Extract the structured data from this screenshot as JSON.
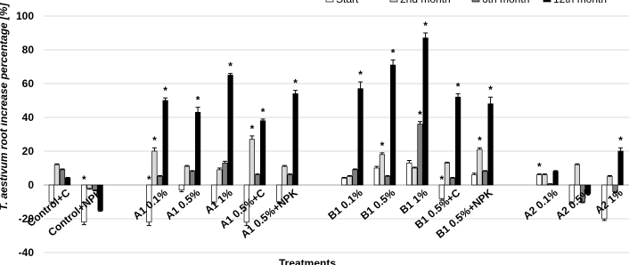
{
  "chart_data": {
    "type": "bar",
    "y_label": "T. aestivum root increase percentage [%]",
    "x_label": "Treatments",
    "categories": [
      "Control+C",
      "Control+NPK",
      null,
      "A1 0.1%",
      "A1 0.5%",
      "A1 1%",
      "A1 0.5%+C",
      "A1 0.5%+NPK",
      null,
      "B1 0.1%",
      "B1 0.5%",
      "B1 1%",
      "B1 0.5%+C",
      "B1 0.5%+NPK",
      null,
      "A2 0.1%",
      "A2 0.5%",
      "A2 1%"
    ],
    "ylim": [
      -40,
      100
    ],
    "yticks": [
      -40,
      -20,
      0,
      20,
      40,
      60,
      80,
      100
    ],
    "grid": true,
    "legend": "top-right",
    "series": [
      {
        "name": "Start",
        "color": "#ffffff",
        "values": [
          -10,
          -22,
          null,
          -22,
          -3,
          -10,
          -22,
          -10,
          null,
          4,
          10,
          13,
          -8,
          6,
          null,
          6,
          -10,
          -20
        ],
        "errors": [
          1,
          1.5,
          null,
          2,
          1,
          1,
          2,
          1,
          null,
          0.5,
          1,
          1.5,
          1,
          1,
          null,
          0.5,
          1,
          1
        ],
        "significance": [
          null,
          "*",
          null,
          "*",
          null,
          null,
          null,
          null,
          null,
          null,
          null,
          null,
          "*",
          null,
          null,
          "*",
          null,
          null
        ]
      },
      {
        "name": "2nd month",
        "color": "#d9d9d9",
        "values": [
          12,
          -2,
          null,
          20,
          11,
          9,
          27,
          11,
          null,
          5,
          18,
          10,
          13,
          21,
          null,
          6,
          12,
          5
        ],
        "errors": [
          0.5,
          0.5,
          null,
          2,
          0.5,
          1,
          2,
          0.5,
          null,
          0.5,
          1,
          0.5,
          0.5,
          1,
          null,
          0.5,
          0.5,
          0.5
        ],
        "significance": [
          null,
          null,
          null,
          "*",
          null,
          null,
          "*",
          null,
          null,
          null,
          "*",
          null,
          null,
          "*",
          null,
          null,
          null,
          null
        ]
      },
      {
        "name": "6th month",
        "color": "#808080",
        "values": [
          9,
          -3,
          null,
          5,
          8,
          13,
          6,
          6,
          null,
          9,
          5,
          36,
          4,
          8,
          null,
          0.5,
          -10,
          -4
        ],
        "errors": [
          0.5,
          0.5,
          null,
          0.5,
          0.5,
          1,
          0.5,
          0.5,
          null,
          0.5,
          0.5,
          1.5,
          0.5,
          0.5,
          null,
          0.2,
          0.5,
          0.5
        ],
        "significance": [
          null,
          null,
          null,
          null,
          null,
          null,
          null,
          null,
          null,
          null,
          null,
          "*",
          null,
          null,
          null,
          null,
          null,
          null
        ]
      },
      {
        "name": "12th month",
        "color": "#000000",
        "values": [
          4,
          -15,
          null,
          50,
          43,
          65,
          38,
          54,
          null,
          57,
          71,
          87,
          52,
          48,
          null,
          8,
          -5,
          20
        ],
        "errors": [
          0.5,
          0.5,
          null,
          1.5,
          3,
          1,
          1,
          2,
          null,
          4,
          3,
          3,
          2,
          4,
          null,
          0.5,
          0.5,
          2
        ],
        "significance": [
          null,
          null,
          null,
          "*",
          "*",
          "*",
          "*",
          "*",
          null,
          "*",
          "*",
          "*",
          "*",
          "*",
          null,
          null,
          null,
          "*"
        ]
      }
    ]
  }
}
